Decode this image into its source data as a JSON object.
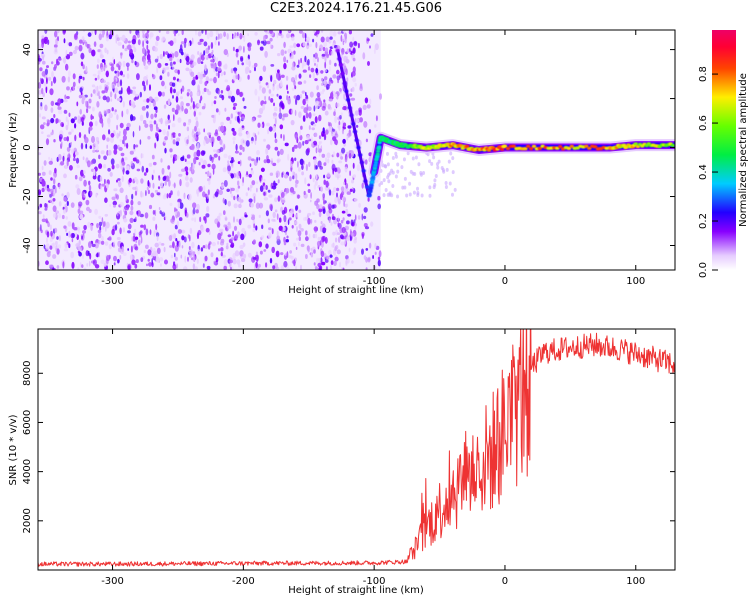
{
  "title": "C2E3.2024.176.21.45.G06",
  "colors": {
    "snr_line": "#ee3333",
    "ridge": "#5500ee",
    "noise": "#7a1cf0",
    "axis": "#000000"
  },
  "chart_data": [
    {
      "type": "heatmap",
      "xlabel": "Height of straight line (km)",
      "ylabel": "Frequency (Hz)",
      "xlim": [
        -357,
        130
      ],
      "ylim": [
        -50,
        48
      ],
      "xticks": [
        -300,
        -200,
        -100,
        0,
        100
      ],
      "xtick_labels": [
        "-300",
        "-200",
        "-100",
        "0",
        "100"
      ],
      "yticks": [
        -40,
        -20,
        0,
        20,
        40
      ],
      "ytick_labels": [
        "-40",
        "-20",
        "0",
        "20",
        "40"
      ],
      "colormap": "rainbow (violet low, red/magenta high)",
      "noise_region_x_range": [
        -357,
        -95
      ],
      "ridge": {
        "description": "diagonal chirp then flat line near 0 Hz",
        "x": [
          -128,
          -104,
          -100,
          -95,
          -90,
          -80,
          -60,
          -40,
          -20,
          0,
          40,
          80,
          100,
          130
        ],
        "y": [
          40,
          -20,
          -10,
          4,
          3,
          1,
          0,
          1,
          -1,
          0,
          0,
          0,
          1,
          1
        ],
        "amplitude": [
          0.2,
          0.3,
          0.4,
          0.5,
          0.5,
          0.55,
          0.75,
          0.85,
          0.9,
          0.95,
          0.9,
          0.85,
          0.8,
          0.7
        ]
      },
      "colorbar": {
        "label": "Normalized spectral amplitude",
        "range": [
          0.0,
          0.98
        ],
        "ticks": [
          0.0,
          0.2,
          0.4,
          0.6,
          0.8
        ],
        "tick_labels": [
          "0.0",
          "0.2",
          "0.4",
          "0.6",
          "0.8"
        ]
      },
      "grid": false
    },
    {
      "type": "line",
      "xlabel": "Height of straight line (km)",
      "ylabel": "SNR (10 * v/v)",
      "xlim": [
        -357,
        130
      ],
      "ylim": [
        0,
        9800
      ],
      "xticks": [
        -300,
        -200,
        -100,
        0,
        100
      ],
      "xtick_labels": [
        "-300",
        "-200",
        "-100",
        "0",
        "100"
      ],
      "yticks": [
        2000,
        4000,
        6000,
        8000
      ],
      "ytick_labels": [
        "2000",
        "4000",
        "6000",
        "8000"
      ],
      "grid": false,
      "series": [
        {
          "x": [
            -357,
            -300,
            -200,
            -100,
            -75,
            -70,
            -60,
            -50,
            -40,
            -30,
            -20,
            -10,
            0,
            10,
            20,
            30,
            50,
            70,
            90,
            110,
            130
          ],
          "y": [
            250,
            250,
            280,
            300,
            350,
            800,
            1800,
            2600,
            3400,
            4000,
            4400,
            5000,
            6000,
            7200,
            8300,
            8900,
            9100,
            9200,
            9000,
            8700,
            8400
          ]
        }
      ]
    }
  ]
}
